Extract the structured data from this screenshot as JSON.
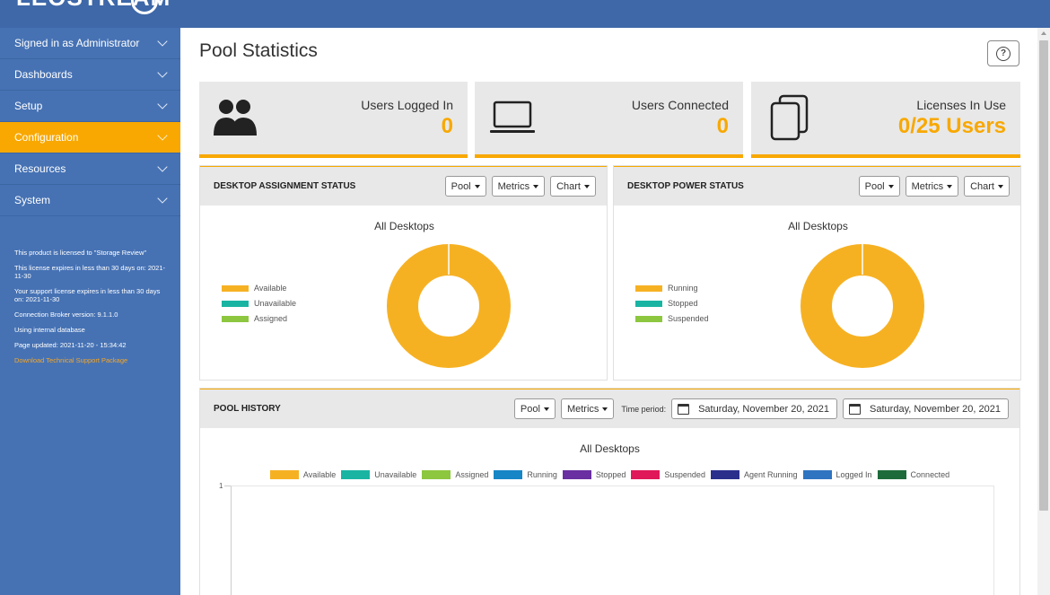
{
  "app": {
    "logo_text": "LEOSTREAM"
  },
  "sidebar": {
    "items": [
      {
        "label": "Signed in as Administrator",
        "active": false
      },
      {
        "label": "Dashboards",
        "active": false
      },
      {
        "label": "Setup",
        "active": false
      },
      {
        "label": "Configuration",
        "active": true
      },
      {
        "label": "Resources",
        "active": false
      },
      {
        "label": "System",
        "active": false
      }
    ],
    "license_info": [
      "This product is licensed to \"Storage Review\"",
      "This license expires in less than 30 days on: 2021-11-30",
      "Your support license expires in less than 30 days on: 2021-11-30",
      "Connection Broker version: 9.1.1.0",
      "Using internal database",
      "Page updated: 2021-11-20 - 15:34:42"
    ],
    "support_link": "Download Technical Support Package"
  },
  "page": {
    "title": "Pool Statistics",
    "help_symbol": "?"
  },
  "cards": [
    {
      "label": "Users Logged In",
      "value": "0",
      "icon": "users-icon"
    },
    {
      "label": "Users Connected",
      "value": "0",
      "icon": "laptop-icon"
    },
    {
      "label": "Licenses In Use",
      "value": "0/25 Users",
      "icon": "license-stack-icon"
    }
  ],
  "assignment_panel": {
    "title": "DESKTOP ASSIGNMENT STATUS",
    "controls": [
      "Pool",
      "Metrics",
      "Chart"
    ],
    "chart_title": "All Desktops",
    "legend": [
      {
        "label": "Available",
        "color": "#f6b123"
      },
      {
        "label": "Unavailable",
        "color": "#1ab4a3"
      },
      {
        "label": "Assigned",
        "color": "#8dc63f"
      }
    ]
  },
  "power_panel": {
    "title": "DESKTOP POWER STATUS",
    "controls": [
      "Pool",
      "Metrics",
      "Chart"
    ],
    "chart_title": "All Desktops",
    "legend": [
      {
        "label": "Running",
        "color": "#f6b123"
      },
      {
        "label": "Stopped",
        "color": "#1ab4a3"
      },
      {
        "label": "Suspended",
        "color": "#8dc63f"
      }
    ]
  },
  "history_panel": {
    "title": "POOL HISTORY",
    "controls": [
      "Pool",
      "Metrics"
    ],
    "time_label": "Time period:",
    "start_date": "Saturday, November 20, 2021",
    "end_date": "Saturday, November 20, 2021",
    "chart_title": "All Desktops",
    "y_tick": "1",
    "legend": [
      {
        "label": "Available",
        "color": "#f6b123"
      },
      {
        "label": "Unavailable",
        "color": "#1ab4a3"
      },
      {
        "label": "Assigned",
        "color": "#8dc63f"
      },
      {
        "label": "Running",
        "color": "#1786c6"
      },
      {
        "label": "Stopped",
        "color": "#6a2fa0"
      },
      {
        "label": "Suspended",
        "color": "#e0185a"
      },
      {
        "label": "Agent Running",
        "color": "#2a2f8c"
      },
      {
        "label": "Logged In",
        "color": "#2f74c0"
      },
      {
        "label": "Connected",
        "color": "#1d6b3a"
      }
    ]
  },
  "chart_data": [
    {
      "type": "pie",
      "title": "All Desktops",
      "labels": [
        "Available",
        "Unavailable",
        "Assigned"
      ],
      "values": [
        100,
        0,
        0
      ],
      "colors": [
        "#f6b123",
        "#1ab4a3",
        "#8dc63f"
      ],
      "legend": "left"
    },
    {
      "type": "pie",
      "title": "All Desktops",
      "labels": [
        "Running",
        "Stopped",
        "Suspended"
      ],
      "values": [
        100,
        0,
        0
      ],
      "colors": [
        "#f6b123",
        "#1ab4a3",
        "#8dc63f"
      ],
      "legend": "left"
    },
    {
      "type": "line",
      "title": "All Desktops",
      "series": [
        {
          "name": "Available",
          "values": []
        },
        {
          "name": "Unavailable",
          "values": []
        },
        {
          "name": "Assigned",
          "values": []
        },
        {
          "name": "Running",
          "values": []
        },
        {
          "name": "Stopped",
          "values": []
        },
        {
          "name": "Suspended",
          "values": []
        },
        {
          "name": "Agent Running",
          "values": []
        },
        {
          "name": "Logged In",
          "values": []
        },
        {
          "name": "Connected",
          "values": []
        }
      ],
      "y_ticks": [
        "1"
      ],
      "legend": "top"
    }
  ]
}
